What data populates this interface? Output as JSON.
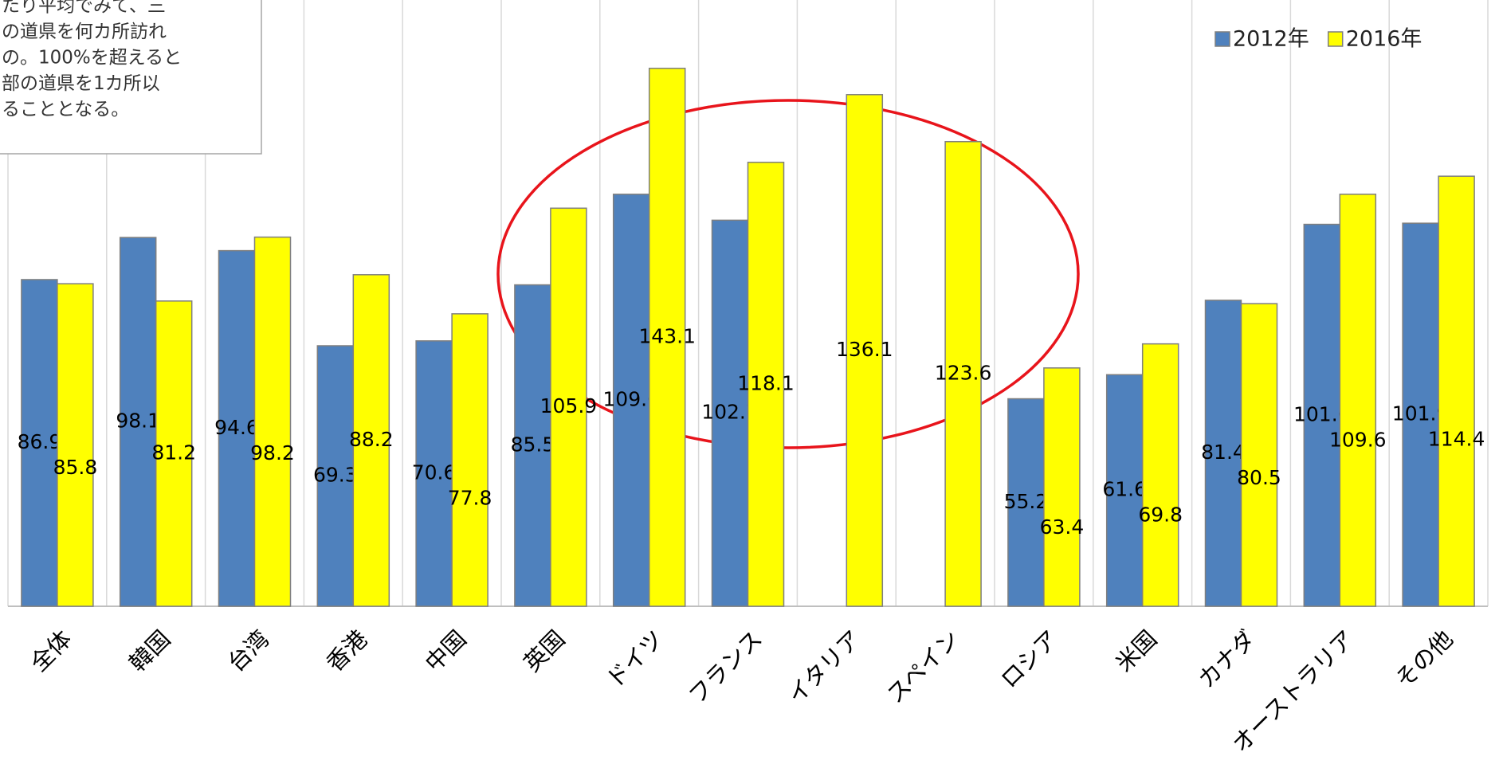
{
  "chart_data": {
    "type": "bar",
    "annotation": [
      "たり平均でみて、三",
      "の道県を何カ所訪れ",
      "の。100%を超えると",
      "部の道県を1カ所以",
      "ることとなる。"
    ],
    "categories": [
      "全体",
      "韓国",
      "台湾",
      "香港",
      "中国",
      "英国",
      "ドイツ",
      "フランス",
      "イタリア",
      "スペイン",
      "ロシア",
      "米国",
      "カナダ",
      "オーストラリア",
      "その他"
    ],
    "series": [
      {
        "name": "2012年",
        "color": "#4f81bd",
        "values": [
          86.9,
          98.1,
          94.6,
          69.3,
          70.6,
          85.5,
          109.6,
          102.7,
          null,
          null,
          55.2,
          61.6,
          81.4,
          101.6,
          101.9
        ]
      },
      {
        "name": "2016年",
        "color": "#ffff00",
        "values": [
          85.8,
          81.2,
          98.2,
          88.2,
          77.8,
          105.9,
          143.1,
          118.1,
          136.1,
          123.6,
          63.4,
          69.8,
          80.5,
          109.6,
          114.4
        ]
      }
    ],
    "ylim": [
      0,
      160
    ],
    "legend": "top-right"
  }
}
